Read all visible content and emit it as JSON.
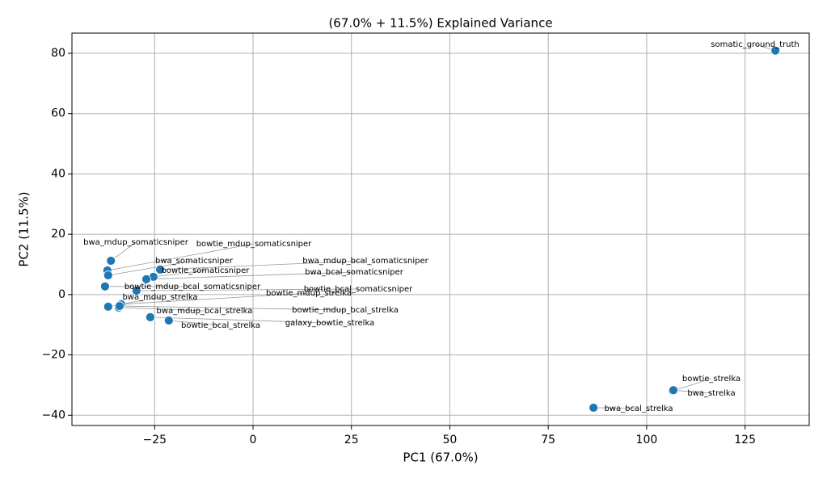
{
  "chart_data": {
    "type": "scatter",
    "title": "(67.0% + 11.5%) Explained Variance",
    "xlabel": "PC1 (67.0%)",
    "ylabel": "PC2 (11.5%)",
    "color": "#1f77b4",
    "grid": true,
    "xlim": [
      -46,
      141.3
    ],
    "ylim": [
      -43.4,
      86.7
    ],
    "xticks": [
      {
        "value": -25,
        "label": "−25"
      },
      0,
      25,
      50,
      75,
      100,
      125
    ],
    "yticks": [
      {
        "value": -40,
        "label": "−40"
      },
      {
        "value": -20,
        "label": "−20"
      },
      0,
      20,
      40,
      60,
      80
    ],
    "labels": [
      "somatic_ground_truth",
      "bowtie_strelka",
      "bwa_strelka",
      "bwa_bcal_strelka",
      "bwa_mdup_somaticsniper",
      "bowtie_mdup_somaticsniper",
      "bwa_somaticsniper",
      "bwa_mdup_bcal_somaticsniper",
      "bowtie_somaticsniper",
      "bwa_bcal_somaticsniper",
      "bowtie_mdup_bcal_somaticsniper",
      "bowtie_bcal_somaticsniper",
      "bowtie_mdup_strelka",
      "bwa_mdup_strelka",
      "bwa_mdup_bcal_strelka",
      "bowtie_mdup_bcal_strelka",
      "galaxy_bowtie_strelka",
      "bowtie_bcal_strelka"
    ],
    "x": [
      132.7,
      106.6,
      106.8,
      86.5,
      -36.1,
      -37.0,
      -36.8,
      -23.6,
      -25.3,
      -27.1,
      -37.6,
      -29.6,
      -33.5,
      -36.8,
      -34.1,
      -33.9,
      -26.1,
      -21.4
    ],
    "y": [
      80.9,
      -31.9,
      -31.7,
      -37.5,
      11.2,
      8.0,
      6.4,
      8.3,
      5.9,
      5.1,
      2.7,
      1.3,
      -3.2,
      -4.0,
      -4.3,
      -3.8,
      -7.5,
      -8.6
    ]
  }
}
